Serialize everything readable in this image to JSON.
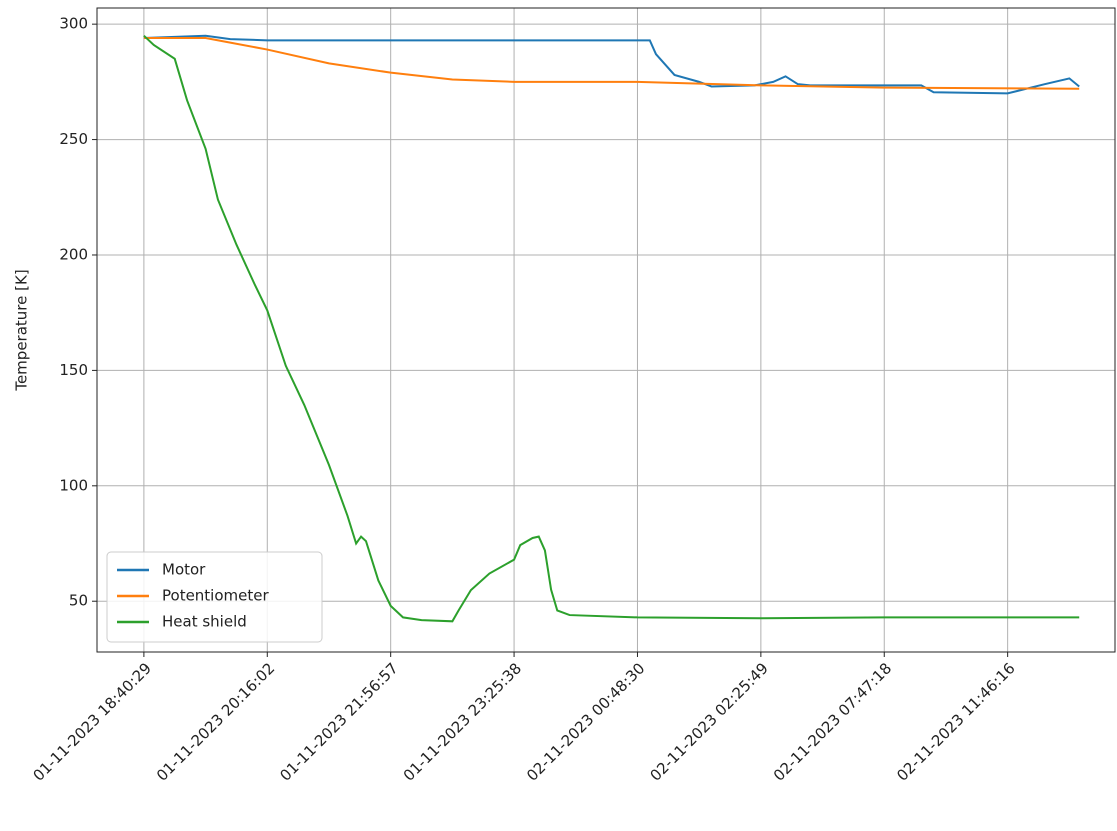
{
  "chart_data": {
    "type": "line",
    "ylabel": "Temperature [K]",
    "xlim": [
      -38,
      787
    ],
    "ylim": [
      28,
      307
    ],
    "xticks": [
      {
        "value": 0,
        "label": "01-11-2023 18:40:29"
      },
      {
        "value": 100,
        "label": "01-11-2023 20:16:02"
      },
      {
        "value": 200,
        "label": "01-11-2023 21:56:57"
      },
      {
        "value": 300,
        "label": "01-11-2023 23:25:38"
      },
      {
        "value": 400,
        "label": "02-11-2023 00:48:30"
      },
      {
        "value": 500,
        "label": "02-11-2023 02:25:49"
      },
      {
        "value": 600,
        "label": "02-11-2023 07:47:18"
      },
      {
        "value": 700,
        "label": "02-11-2023 11:46:16"
      }
    ],
    "yticks": [
      50,
      100,
      150,
      200,
      250,
      300
    ],
    "grid": true,
    "legend": "lower left",
    "series": [
      {
        "name": "Motor",
        "color": "#1f77b4",
        "x": [
          0,
          50,
          70,
          100,
          410,
          415,
          430,
          450,
          460,
          495,
          510,
          520,
          530,
          540,
          630,
          640,
          700,
          730,
          750,
          758
        ],
        "values": [
          294,
          295,
          293.5,
          293,
          293,
          287,
          278,
          275,
          273,
          273.5,
          275,
          277.4,
          274,
          273.5,
          273.5,
          270.5,
          270,
          274,
          276.5,
          273
        ]
      },
      {
        "name": "Potentiometer",
        "color": "#ff7f0e",
        "x": [
          0,
          50,
          70,
          100,
          150,
          200,
          250,
          300,
          400,
          500,
          600,
          758
        ],
        "values": [
          294,
          294,
          292,
          289,
          283,
          279,
          276,
          275,
          275,
          273.5,
          272.5,
          272
        ]
      },
      {
        "name": "Heat shield",
        "color": "#2ca02c",
        "x": [
          0,
          8,
          25,
          35,
          50,
          60,
          75,
          90,
          100,
          115,
          130,
          150,
          165,
          172,
          176,
          180,
          190,
          200,
          210,
          225,
          250,
          255,
          265,
          280,
          300,
          305,
          315,
          320,
          325,
          330,
          335,
          345,
          400,
          500,
          600,
          758
        ],
        "values": [
          295,
          291,
          285,
          267,
          246,
          224,
          204.5,
          187,
          176,
          152,
          135,
          109,
          87,
          75,
          78,
          76,
          59,
          48,
          43,
          41.8,
          41.3,
          46,
          54.8,
          62,
          68,
          74.3,
          77.4,
          78,
          72,
          55,
          46,
          44,
          43,
          42.6,
          43,
          43
        ]
      }
    ]
  }
}
